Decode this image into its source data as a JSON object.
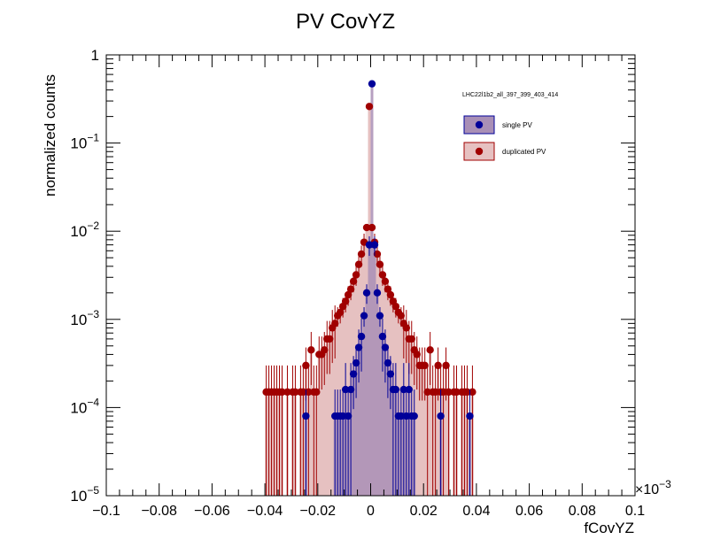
{
  "chart_data": {
    "type": "scatter",
    "title": "PV CovYZ",
    "xlabel": "fCovYZ",
    "ylabel": "normalized counts",
    "x_multiplier": "×10",
    "x_multiplier_exp": "−3",
    "xlim": [
      -0.1,
      0.1
    ],
    "ylim": [
      1e-05,
      1
    ],
    "yscale": "log",
    "grid": false,
    "legend_placement": "top-right",
    "legend_header": "LHC22l1b2_all_397_399_403_414",
    "x_ticks": [
      "−0.1",
      "−0.08",
      "−0.06",
      "−0.04",
      "−0.02",
      "0",
      "0.02",
      "0.04",
      "0.06",
      "0.08",
      "0.1"
    ],
    "y_ticks": [
      {
        "base": "1",
        "exp": ""
      },
      {
        "base": "10",
        "exp": "−1"
      },
      {
        "base": "10",
        "exp": "−2"
      },
      {
        "base": "10",
        "exp": "−3"
      },
      {
        "base": "10",
        "exp": "−4"
      },
      {
        "base": "10",
        "exp": "−5"
      }
    ],
    "series": [
      {
        "name": "duplicated PV",
        "color": "#a00000",
        "fill": "#e6c1c1",
        "x": [
          -0.0395,
          -0.0385,
          -0.0375,
          -0.0365,
          -0.0355,
          -0.0345,
          -0.0335,
          -0.0325,
          -0.0315,
          -0.0305,
          -0.0295,
          -0.0285,
          -0.0275,
          -0.0265,
          -0.0255,
          -0.0245,
          -0.0235,
          -0.0225,
          -0.0215,
          -0.0205,
          -0.0195,
          -0.0185,
          -0.0175,
          -0.0165,
          -0.0155,
          -0.0145,
          -0.0135,
          -0.0125,
          -0.0115,
          -0.0105,
          -0.0095,
          -0.0085,
          -0.0075,
          -0.0065,
          -0.0055,
          -0.0045,
          -0.0035,
          -0.0025,
          -0.0015,
          -0.0005,
          0.0005,
          0.0015,
          0.0025,
          0.0035,
          0.0045,
          0.0055,
          0.0065,
          0.0075,
          0.0085,
          0.0095,
          0.0105,
          0.0115,
          0.0125,
          0.0135,
          0.0145,
          0.0155,
          0.0165,
          0.0175,
          0.0185,
          0.0195,
          0.0205,
          0.0215,
          0.0225,
          0.0235,
          0.0245,
          0.0255,
          0.0265,
          0.0275,
          0.0285,
          0.0295,
          0.0305,
          0.0315,
          0.0325,
          0.0335,
          0.0345,
          0.0355,
          0.0365,
          0.0375,
          0.0385
        ],
        "y": [
          0.00015,
          0.00015,
          0.00015,
          0.00015,
          0.00015,
          0.00015,
          0.00015,
          0.0,
          0.00015,
          0.0,
          0.00015,
          0.00015,
          0.0,
          0.00015,
          0.00015,
          0.0003,
          0.00015,
          0.00045,
          0.00015,
          0.00015,
          0.0004,
          0.0004,
          0.00045,
          0.0006,
          0.0006,
          0.0008,
          0.0009,
          0.0011,
          0.0012,
          0.0014,
          0.0016,
          0.0019,
          0.0022,
          0.0027,
          0.0032,
          0.0042,
          0.0055,
          0.0075,
          0.011,
          0.26,
          0.011,
          0.0075,
          0.0055,
          0.0042,
          0.0032,
          0.0027,
          0.0022,
          0.0019,
          0.0016,
          0.0014,
          0.0012,
          0.0011,
          0.0009,
          0.0008,
          0.0006,
          0.0006,
          0.00045,
          0.0004,
          0.0003,
          0.0003,
          0.0003,
          0.00015,
          0.00045,
          0.00015,
          0.00015,
          0.0003,
          0.00015,
          0.00015,
          0.0003,
          0.00015,
          0.0,
          0.00015,
          0.00015,
          0.0,
          0.00015,
          0.00015,
          0.00015,
          0.0,
          0.00015
        ]
      },
      {
        "name": "single PV",
        "color": "#000099",
        "fill": "#a98fb6",
        "x": [
          -0.0245,
          -0.0135,
          -0.0125,
          -0.0115,
          -0.0105,
          -0.0095,
          -0.0085,
          -0.0075,
          -0.0065,
          -0.0055,
          -0.0045,
          -0.0035,
          -0.0025,
          -0.0015,
          -0.0005,
          0.0005,
          0.0015,
          0.0025,
          0.0035,
          0.0045,
          0.0055,
          0.0065,
          0.0075,
          0.0085,
          0.0095,
          0.0105,
          0.0115,
          0.0125,
          0.0135,
          0.0145,
          0.0155,
          0.0165,
          0.0265,
          0.0375
        ],
        "y": [
          8e-05,
          8e-05,
          8e-05,
          8e-05,
          8e-05,
          0.00016,
          8e-05,
          0.00016,
          0.00024,
          0.00032,
          0.00048,
          0.00064,
          0.0011,
          0.002,
          0.007,
          0.47,
          0.007,
          0.002,
          0.0011,
          0.00064,
          0.00048,
          0.00032,
          0.00024,
          0.00016,
          0.00016,
          8e-05,
          8e-05,
          0.00016,
          8e-05,
          0.00016,
          8e-05,
          8e-05,
          8e-05,
          8e-05
        ]
      }
    ]
  }
}
